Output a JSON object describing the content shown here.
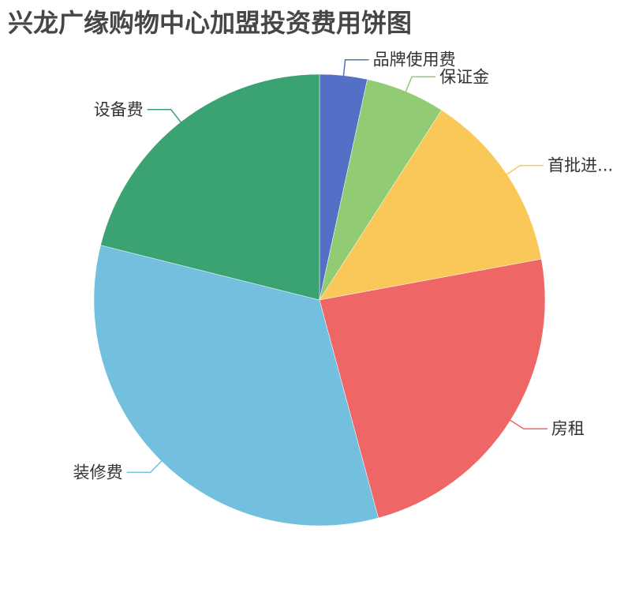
{
  "chart_data": {
    "type": "pie",
    "title": "兴龙广缘购物中心加盟投资费用饼图",
    "categories": [
      "品牌使用费",
      "保证金",
      "首批进...",
      "房租",
      "装修费",
      "设备费"
    ],
    "values": [
      3.4,
      5.7,
      13.0,
      23.7,
      33.1,
      21.1
    ],
    "colors": [
      "#5470c6",
      "#91cc75",
      "#fac858",
      "#ee6666",
      "#73c0de",
      "#3ba272"
    ],
    "start": "top, clockwise",
    "legend": "none"
  }
}
